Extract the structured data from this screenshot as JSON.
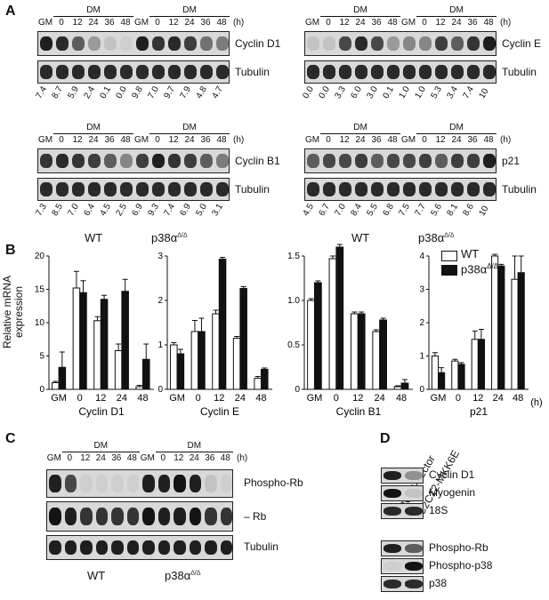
{
  "panels": {
    "A": "A",
    "B": "B",
    "C": "C",
    "D": "D"
  },
  "hours_unit": "(h)",
  "dm_label": "DM",
  "lanes": [
    "GM",
    "0",
    "12",
    "24",
    "36",
    "48"
  ],
  "genotypes": {
    "wt": "WT",
    "ko": "p38α",
    "ko_sup": "Δ/Δ"
  },
  "panel_a": {
    "cyclin_d1": {
      "label": "Cyclin D1",
      "tubulin": "Tubulin",
      "quant": [
        "7.4",
        "8.7",
        "5.9",
        "2.4",
        "0.1",
        "0.0",
        "9.8",
        "7.0",
        "9.7",
        "7.9",
        "4.8",
        "4.7"
      ]
    },
    "cyclin_e": {
      "label": "Cyclin E",
      "tubulin": "Tubulin",
      "quant": [
        "0.0",
        "0.0",
        "3.3",
        "6.0",
        "3.0",
        "0.1",
        "1.0",
        "1.0",
        "5.3",
        "3.4",
        "7.4",
        "10"
      ]
    },
    "cyclin_b1": {
      "label": "Cyclin B1",
      "tubulin": "Tubulin",
      "quant": [
        "7.3",
        "8.5",
        "7.0",
        "6.4",
        "4.5",
        "2.5",
        "6.9",
        "9.3",
        "7.4",
        "6.9",
        "5.0",
        "3.1"
      ]
    },
    "p21": {
      "label": "p21",
      "tubulin": "Tubulin",
      "quant": [
        "4.5",
        "6.7",
        "7.0",
        "8.4",
        "5.5",
        "6.8",
        "7.5",
        "7.7",
        "5.6",
        "8.1",
        "8.6",
        "10"
      ]
    }
  },
  "panel_b": {
    "ylabel_1": "Relative mRNA",
    "ylabel_2": "expression",
    "hours_unit": "(h)",
    "legend": {
      "wt": "WT",
      "ko": "p38α",
      "ko_sup": "Δ/Δ"
    }
  },
  "chart_data": [
    {
      "type": "bar",
      "title": "Cyclin D1",
      "categories": [
        "GM",
        "0",
        "12",
        "24",
        "48"
      ],
      "ylim": [
        0,
        20
      ],
      "yticks": [
        0,
        5,
        10,
        15,
        20
      ],
      "series": [
        {
          "name": "WT",
          "values": [
            1,
            15.2,
            10.3,
            5.8,
            0.4
          ],
          "errors": [
            0.2,
            2.5,
            0.6,
            1.0,
            0.2
          ]
        },
        {
          "name": "p38αΔ/Δ",
          "values": [
            3.3,
            14.5,
            13.5,
            14.7,
            4.5
          ],
          "errors": [
            2.3,
            1.8,
            0.6,
            1.8,
            2.3
          ]
        }
      ]
    },
    {
      "type": "bar",
      "title": "Cyclin E",
      "categories": [
        "GM",
        "0",
        "12",
        "24",
        "48"
      ],
      "ylim": [
        0,
        3
      ],
      "yticks": [
        0,
        1,
        2,
        3
      ],
      "series": [
        {
          "name": "WT",
          "values": [
            1.0,
            1.3,
            1.7,
            1.15,
            0.25
          ],
          "errors": [
            0.05,
            0.25,
            0.08,
            0.04,
            0.04
          ]
        },
        {
          "name": "p38αΔ/Δ",
          "values": [
            0.8,
            1.3,
            2.93,
            2.27,
            0.45
          ],
          "errors": [
            0.1,
            0.3,
            0.04,
            0.04,
            0.03
          ]
        }
      ]
    },
    {
      "type": "bar",
      "title": "Cyclin B1",
      "categories": [
        "GM",
        "0",
        "12",
        "24",
        "48"
      ],
      "ylim": [
        0,
        1.5
      ],
      "yticks": [
        0,
        0.5,
        1.0,
        1.5
      ],
      "series": [
        {
          "name": "WT",
          "values": [
            1.0,
            1.47,
            0.85,
            0.65,
            0.03
          ],
          "errors": [
            0.02,
            0.03,
            0.02,
            0.02,
            0.01
          ]
        },
        {
          "name": "p38αΔ/Δ",
          "values": [
            1.2,
            1.6,
            0.85,
            0.78,
            0.07
          ],
          "errors": [
            0.02,
            0.03,
            0.02,
            0.02,
            0.04
          ]
        }
      ]
    },
    {
      "type": "bar",
      "title": "p21",
      "categories": [
        "GM",
        "0",
        "12",
        "24",
        "48"
      ],
      "ylim": [
        0,
        4
      ],
      "yticks": [
        0,
        1,
        2,
        3,
        4
      ],
      "series": [
        {
          "name": "WT",
          "values": [
            1.0,
            0.85,
            1.5,
            4.0,
            3.3
          ],
          "errors": [
            0.1,
            0.05,
            0.25,
            0.05,
            0.7
          ]
        },
        {
          "name": "p38αΔ/Δ",
          "values": [
            0.5,
            0.75,
            1.5,
            3.7,
            3.5
          ],
          "errors": [
            0.15,
            0.05,
            0.3,
            0.05,
            0.5
          ]
        }
      ]
    }
  ],
  "panel_c": {
    "rows": [
      "Phospho-Rb",
      "Rb",
      "Tubulin"
    ]
  },
  "panel_d": {
    "columns": [
      "C2C12-Vector",
      "C2C12-MKK6E"
    ],
    "rows_top": [
      "Cyclin D1",
      "Myogenin",
      "18S"
    ],
    "rows_bottom": [
      "Phospho-Rb",
      "Phospho-p38",
      "p38"
    ]
  }
}
